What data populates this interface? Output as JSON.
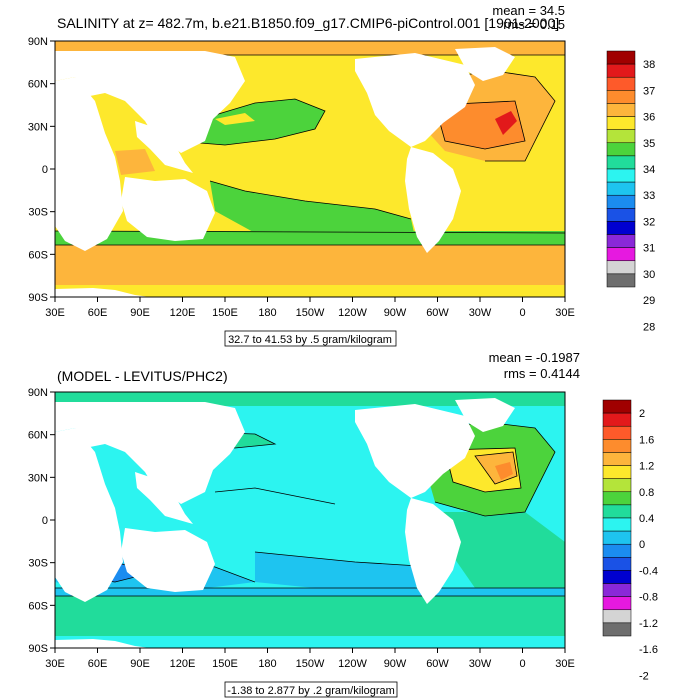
{
  "chart_data": [
    {
      "type": "heatmap",
      "title": "SALINITY at z= 482.7m, b.e21.B1850.f09_g17.CMIP6-piControl.001 [1901-2000]",
      "stats": {
        "mean": "mean = 34.5",
        "rms": "rms = 0.15"
      },
      "xlabel": "",
      "ylabel": "",
      "lon_ticks": [
        "30E",
        "60E",
        "90E",
        "120E",
        "150E",
        "180",
        "150W",
        "120W",
        "90W",
        "60W",
        "30W",
        "0",
        "30E"
      ],
      "lat_ticks": [
        "90N",
        "60N",
        "30N",
        "0",
        "30S",
        "60S",
        "90S"
      ],
      "xlim": [
        30,
        390
      ],
      "ylim": [
        -90,
        90
      ],
      "contour_info": "32.7 to 41.53 by .5 gram/kilogram",
      "colorbar": {
        "labels": [
          "38",
          "37",
          "36",
          "35",
          "34",
          "33",
          "32",
          "31",
          "30",
          "29",
          "28"
        ],
        "colors": [
          "#a00000",
          "#e2191b",
          "#fe5a2a",
          "#fd8c2d",
          "#fdb53c",
          "#fde82c",
          "#b4e43a",
          "#4cd33c",
          "#21dc9b",
          "#2cf4f0",
          "#1ec4f0",
          "#1b8cf0",
          "#1a52e6",
          "#0000d0",
          "#8a28d8",
          "#e619e0",
          "#d4d4d4",
          "#6e6e6e"
        ]
      },
      "legend_position": "right"
    },
    {
      "type": "heatmap",
      "title": "(MODEL - LEVITUS/PHC2)",
      "stats": {
        "mean": "mean = -0.1987",
        "rms": "rms = 0.4144"
      },
      "xlabel": "",
      "ylabel": "",
      "lon_ticks": [
        "30E",
        "60E",
        "90E",
        "120E",
        "150E",
        "180",
        "150W",
        "120W",
        "90W",
        "60W",
        "30W",
        "0",
        "30E"
      ],
      "lat_ticks": [
        "90N",
        "60N",
        "30N",
        "0",
        "30S",
        "60S",
        "90S"
      ],
      "xlim": [
        30,
        390
      ],
      "ylim": [
        -90,
        90
      ],
      "contour_info": "-1.38 to 2.877 by .2 gram/kilogram",
      "colorbar": {
        "labels": [
          "2",
          "1.6",
          "1.2",
          "0.8",
          "0.4",
          "0",
          "-0.4",
          "-0.8",
          "-1.2",
          "-1.6",
          "-2"
        ],
        "colors": [
          "#a00000",
          "#e2191b",
          "#fe5a2a",
          "#fd8c2d",
          "#fdb53c",
          "#fde82c",
          "#b4e43a",
          "#4cd33c",
          "#21dc9b",
          "#2cf4f0",
          "#1ec4f0",
          "#1b8cf0",
          "#1a52e6",
          "#0000d0",
          "#8a28d8",
          "#e619e0",
          "#d4d4d4",
          "#6e6e6e"
        ]
      },
      "legend_position": "right"
    }
  ]
}
